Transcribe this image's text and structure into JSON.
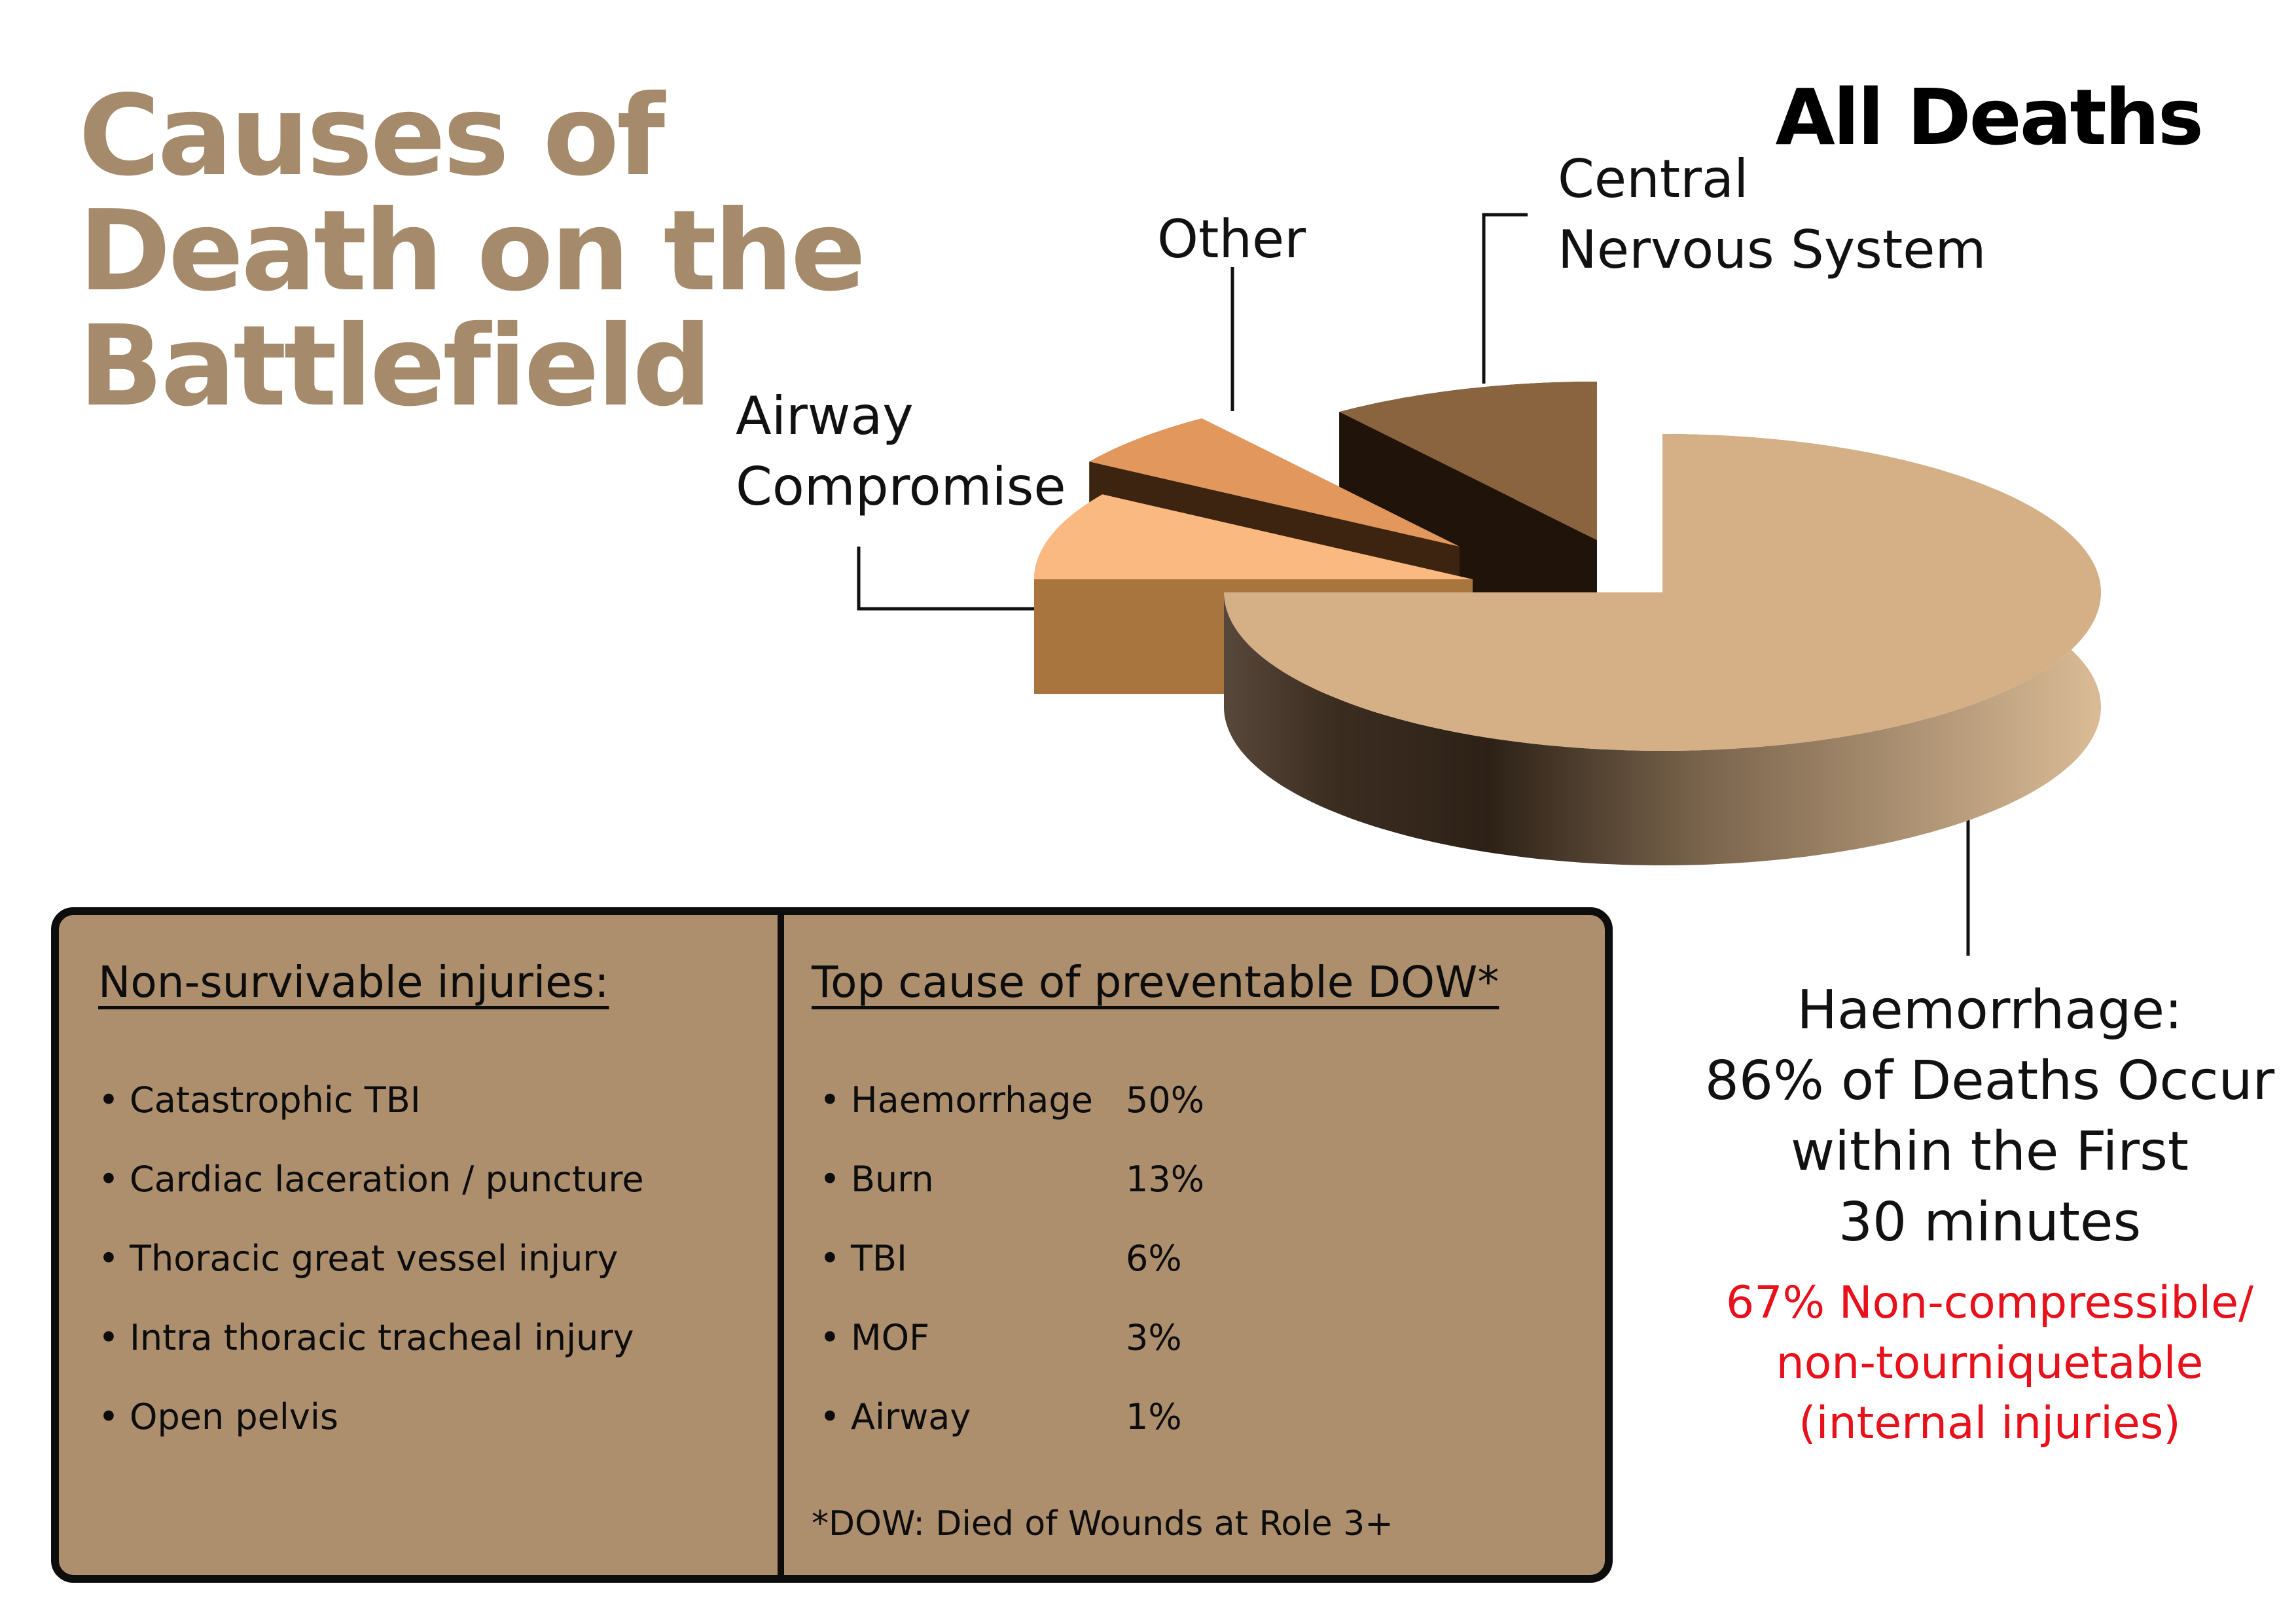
{
  "title_lines": [
    "Causes of",
    "Death on the",
    "Battlefield"
  ],
  "colors": {
    "title": "#a58a6b",
    "info_box": "#ad8f6e",
    "note_red": "#e8101a",
    "haemorrhage_top": "#d5b086",
    "airway_top": "#fbb982",
    "other_top": "#e2975d",
    "cns_top": "#8a633f"
  },
  "chart_data": {
    "type": "pie",
    "title": "All Deaths",
    "slices": [
      {
        "label": "Haemorrhage",
        "value": 75
      },
      {
        "label": "Airway Compromise",
        "value": 9
      },
      {
        "label": "Other",
        "value": 6
      },
      {
        "label": "Central Nervous System",
        "value": 10
      }
    ],
    "style": "3d-exploded",
    "labels": {
      "other": [
        "Other"
      ],
      "cns": [
        "Central",
        "Nervous System"
      ],
      "airway": [
        "Airway",
        "Compromise"
      ],
      "haemorrhage": [
        "Haemorrhage:",
        "86% of Deaths Occur",
        "within the First",
        "30 minutes"
      ],
      "haemorrhage_note": [
        "67% Non-compressible/",
        "non-tourniquetable",
        "(internal injuries)"
      ]
    }
  },
  "info_box": {
    "left": {
      "heading": "Non-survivable injuries:",
      "items": [
        "Catastrophic  TBI",
        "Cardiac laceration / puncture",
        "Thoracic great vessel injury",
        "Intra thoracic tracheal injury",
        "Open pelvis"
      ]
    },
    "right": {
      "heading": "Top cause of preventable DOW*",
      "items": [
        {
          "label": "Haemorrhage",
          "pct": "50%"
        },
        {
          "label": "Burn",
          "pct": "13%"
        },
        {
          "label": "TBI",
          "pct": "6%"
        },
        {
          "label": "MOF",
          "pct": "3%"
        },
        {
          "label": "Airway",
          "pct": "1%"
        }
      ],
      "footnote": "*DOW: Died of Wounds at Role 3+"
    }
  }
}
